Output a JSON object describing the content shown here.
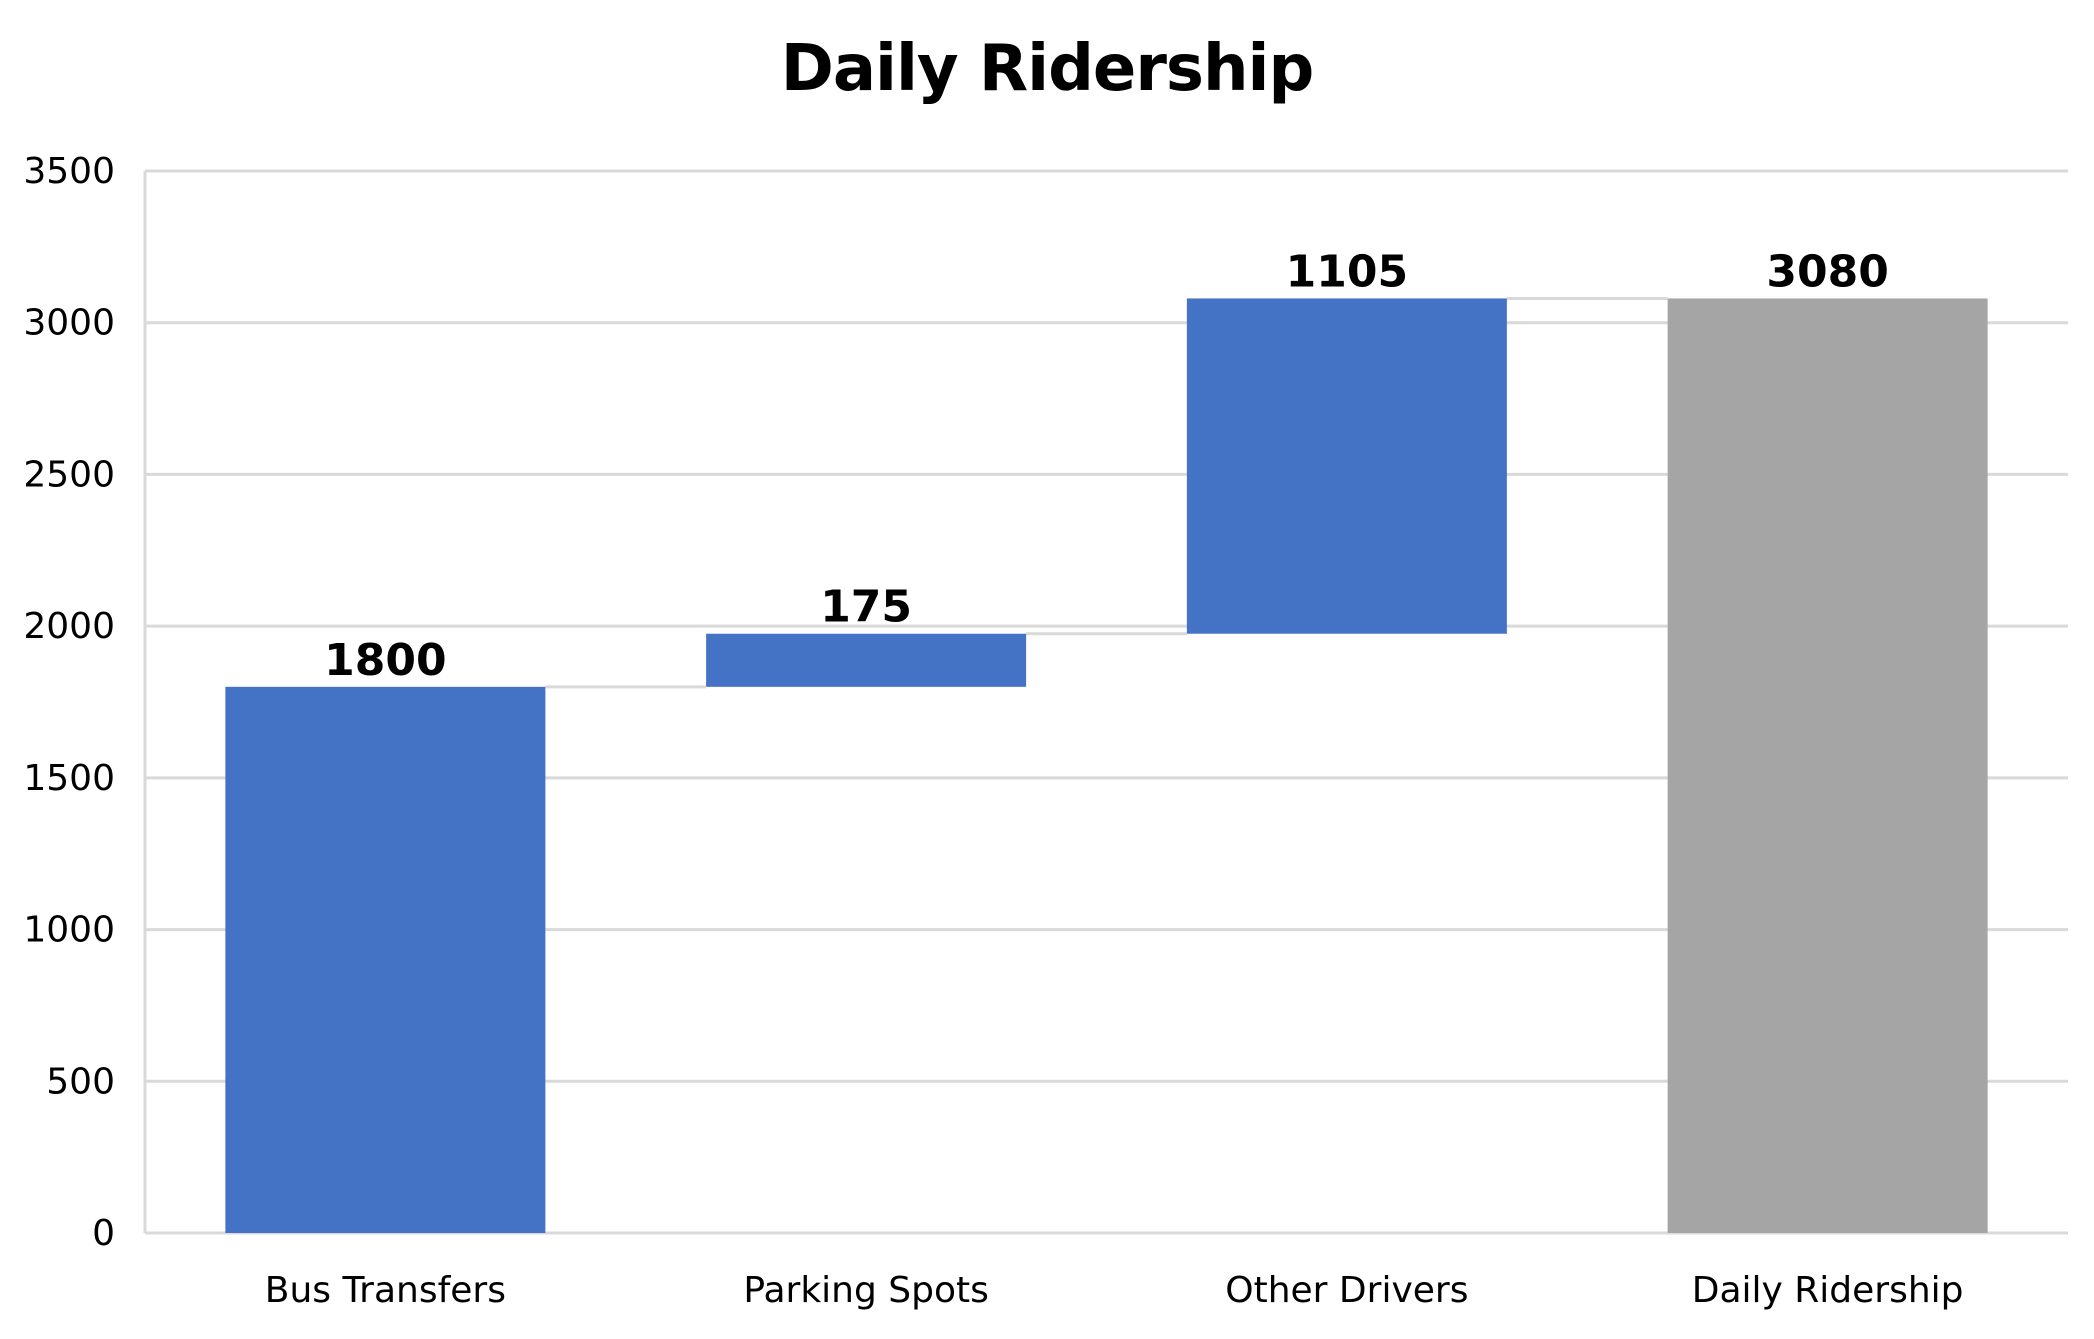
{
  "chart_data": {
    "type": "waterfall",
    "title": "Daily Ridership",
    "xlabel": "",
    "ylabel": "",
    "categories": [
      "Bus Transfers",
      "Parking Spots",
      "Other Drivers",
      "Daily Ridership"
    ],
    "values": [
      1800,
      175,
      1105,
      3080
    ],
    "kinds": [
      "increase",
      "increase",
      "increase",
      "total"
    ],
    "data_labels": [
      "1800",
      "175",
      "1105",
      "3080"
    ],
    "ylim": [
      0,
      3500
    ],
    "yticks": [
      0,
      500,
      1000,
      1500,
      2000,
      2500,
      3000,
      3500
    ],
    "grid": true,
    "legend": "none",
    "colors": {
      "increase": "#4472C4",
      "total": "#A5A5A5",
      "gridline": "#D9D9D9",
      "connector": "#D9D9D9",
      "text": "#000000"
    }
  }
}
